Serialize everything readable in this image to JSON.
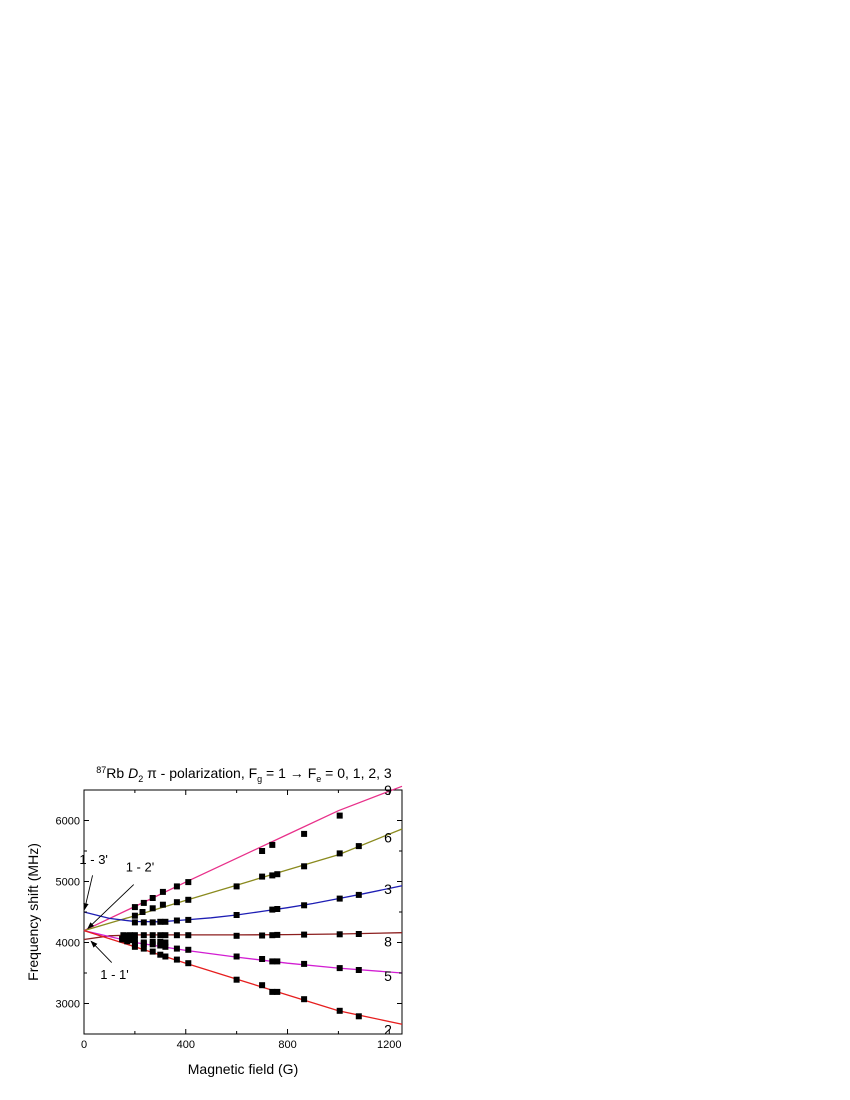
{
  "chart_data": {
    "type": "scatter",
    "title": {
      "iso": "87",
      "element": "Rb ",
      "line": "D",
      "line_sub": "2",
      "pol": " π - polarization, F",
      "g_sub": "g",
      "mid": " = 1  → F",
      "e_sub": "e",
      "end": " =  0, 1, 2, 3"
    },
    "xlabel": "Magnetic field (G)",
    "ylabel": "Frequency shift (MHz)",
    "xlim": [
      0,
      1250
    ],
    "ylim": [
      2500,
      6500
    ],
    "xticks": [
      {
        "value": 0,
        "label": "0"
      },
      {
        "value": 400,
        "label": "400"
      },
      {
        "value": 800,
        "label": "800"
      },
      {
        "value": 1200,
        "label": "1200"
      }
    ],
    "yticks": [
      {
        "value": 3000,
        "label": "3000"
      },
      {
        "value": 4000,
        "label": "4000"
      },
      {
        "value": 5000,
        "label": "5000"
      },
      {
        "value": 6000,
        "label": "6000"
      }
    ],
    "series": [
      {
        "label": "9",
        "color": "#e8308a",
        "x": [
          0,
          200,
          400,
          600,
          800,
          1000,
          1250
        ],
        "y": [
          4195,
          4590,
          4990,
          5380,
          5770,
          6160,
          6560
        ],
        "points_x": [
          200,
          235,
          270,
          310,
          365,
          410,
          700,
          740,
          865,
          1005
        ],
        "points_y": [
          4580,
          4650,
          4730,
          4830,
          4920,
          4990,
          5500,
          5600,
          5780,
          6080
        ]
      },
      {
        "label": "6",
        "color": "#8a8a1e",
        "x": [
          0,
          200,
          400,
          600,
          800,
          1000,
          1250
        ],
        "y": [
          4195,
          4440,
          4690,
          4940,
          5190,
          5440,
          5860
        ],
        "points_x": [
          200,
          230,
          270,
          310,
          365,
          410,
          600,
          700,
          740,
          760,
          865,
          1005,
          1080
        ],
        "points_y": [
          4440,
          4500,
          4560,
          4620,
          4660,
          4700,
          4920,
          5080,
          5100,
          5120,
          5250,
          5460,
          5580
        ]
      },
      {
        "label": "3",
        "color": "#1e1eb4",
        "x": [
          0,
          100,
          200,
          300,
          400,
          500,
          600,
          700,
          800,
          900,
          1000,
          1100,
          1250
        ],
        "y": [
          4500,
          4395,
          4345,
          4340,
          4370,
          4405,
          4450,
          4510,
          4570,
          4640,
          4720,
          4800,
          4930
        ],
        "points_x": [
          200,
          235,
          270,
          300,
          320,
          365,
          410,
          600,
          740,
          760,
          865,
          1005,
          1080
        ],
        "points_y": [
          4330,
          4330,
          4330,
          4340,
          4340,
          4360,
          4370,
          4450,
          4540,
          4550,
          4610,
          4720,
          4780
        ]
      },
      {
        "label": "8",
        "color": "#8b1e1e",
        "x": [
          0,
          100,
          200,
          300,
          400,
          600,
          800,
          1000,
          1250
        ],
        "y": [
          4050,
          4110,
          4125,
          4125,
          4125,
          4125,
          4130,
          4140,
          4160
        ],
        "points_x": [
          155,
          170,
          180,
          200,
          235,
          270,
          300,
          320,
          365,
          410,
          600,
          700,
          740,
          760,
          865,
          1005,
          1080
        ],
        "points_y": [
          4120,
          4115,
          4120,
          4120,
          4120,
          4120,
          4120,
          4120,
          4120,
          4120,
          4110,
          4115,
          4120,
          4125,
          4130,
          4135,
          4140
        ],
        "points2_x": [
          150,
          165,
          180,
          200,
          235,
          270,
          300,
          320
        ],
        "points2_y": [
          4050,
          4060,
          4040,
          4050,
          4000,
          4010,
          4010,
          4000
        ]
      },
      {
        "label": "5",
        "color": "#d21ed2",
        "x": [
          0,
          200,
          400,
          600,
          800,
          1000,
          1250
        ],
        "y": [
          4195,
          4000,
          3870,
          3760,
          3660,
          3580,
          3500
        ],
        "points_x": [
          150,
          170,
          200,
          235,
          270,
          300,
          320,
          365,
          410,
          600,
          700,
          740,
          760,
          865,
          1005,
          1080
        ],
        "points_y": [
          4060,
          4020,
          3980,
          3980,
          3970,
          3950,
          3930,
          3900,
          3880,
          3770,
          3730,
          3690,
          3690,
          3650,
          3580,
          3550
        ]
      },
      {
        "label": "2",
        "color": "#e61e1e",
        "x": [
          0,
          200,
          400,
          600,
          800,
          1000,
          1250
        ],
        "y": [
          4195,
          3930,
          3660,
          3400,
          3140,
          2880,
          2660
        ],
        "points_x": [
          200,
          235,
          270,
          300,
          320,
          365,
          410,
          600,
          700,
          740,
          760,
          865,
          1005,
          1080
        ],
        "points_y": [
          3930,
          3900,
          3850,
          3800,
          3770,
          3720,
          3660,
          3390,
          3300,
          3190,
          3190,
          3070,
          2880,
          2790
        ]
      }
    ],
    "annotations": [
      {
        "text": "1 - 3'",
        "text_x": 38,
        "text_y": 5290,
        "arrow_to_x": 2,
        "arrow_to_y": 4540
      },
      {
        "text": "1 - 2'",
        "text_x": 220,
        "text_y": 5160,
        "arrow_to_x": 15,
        "arrow_to_y": 4230
      },
      {
        "text": "1 - 1'",
        "text_x": 120,
        "text_y": 3400,
        "arrow_to_x": 28,
        "arrow_to_y": 4020
      }
    ]
  }
}
